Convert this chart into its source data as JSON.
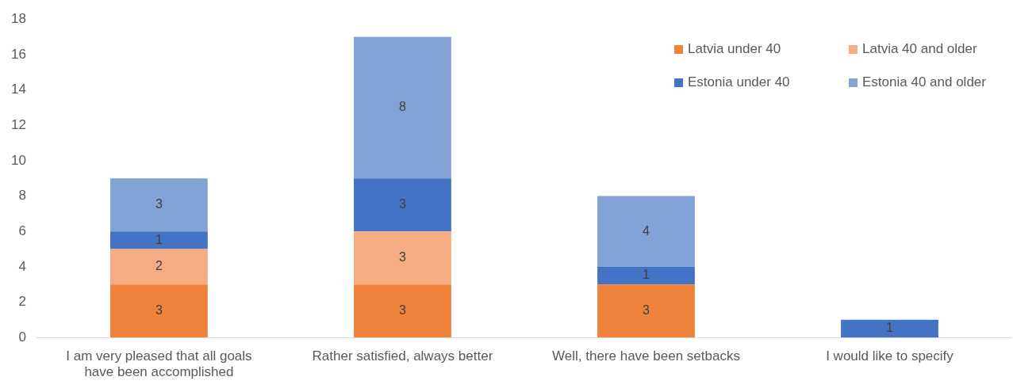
{
  "chart_data": {
    "type": "bar",
    "stacked": true,
    "categories": [
      "I am very pleased that all goals have been accomplished",
      "Rather satisfied, always better",
      "Well, there have been setbacks",
      "I would like to specify"
    ],
    "series": [
      {
        "name": "Latvia under 40",
        "color": "#ef833c",
        "values": [
          3,
          3,
          3,
          null
        ]
      },
      {
        "name": "Latvia 40 and older",
        "color": "#f5ac82",
        "values": [
          2,
          3,
          null,
          null
        ]
      },
      {
        "name": "Estonia under 40",
        "color": "#4472c4",
        "values": [
          1,
          3,
          1,
          1
        ]
      },
      {
        "name": "Estonia 40 and older",
        "color": "#82a3d6",
        "values": [
          3,
          8,
          4,
          null
        ]
      }
    ],
    "ylim": [
      0,
      18
    ],
    "yticks": [
      0,
      2,
      4,
      6,
      8,
      10,
      12,
      14,
      16,
      18
    ],
    "grid": false,
    "legend": "top right",
    "data_labels": true
  }
}
